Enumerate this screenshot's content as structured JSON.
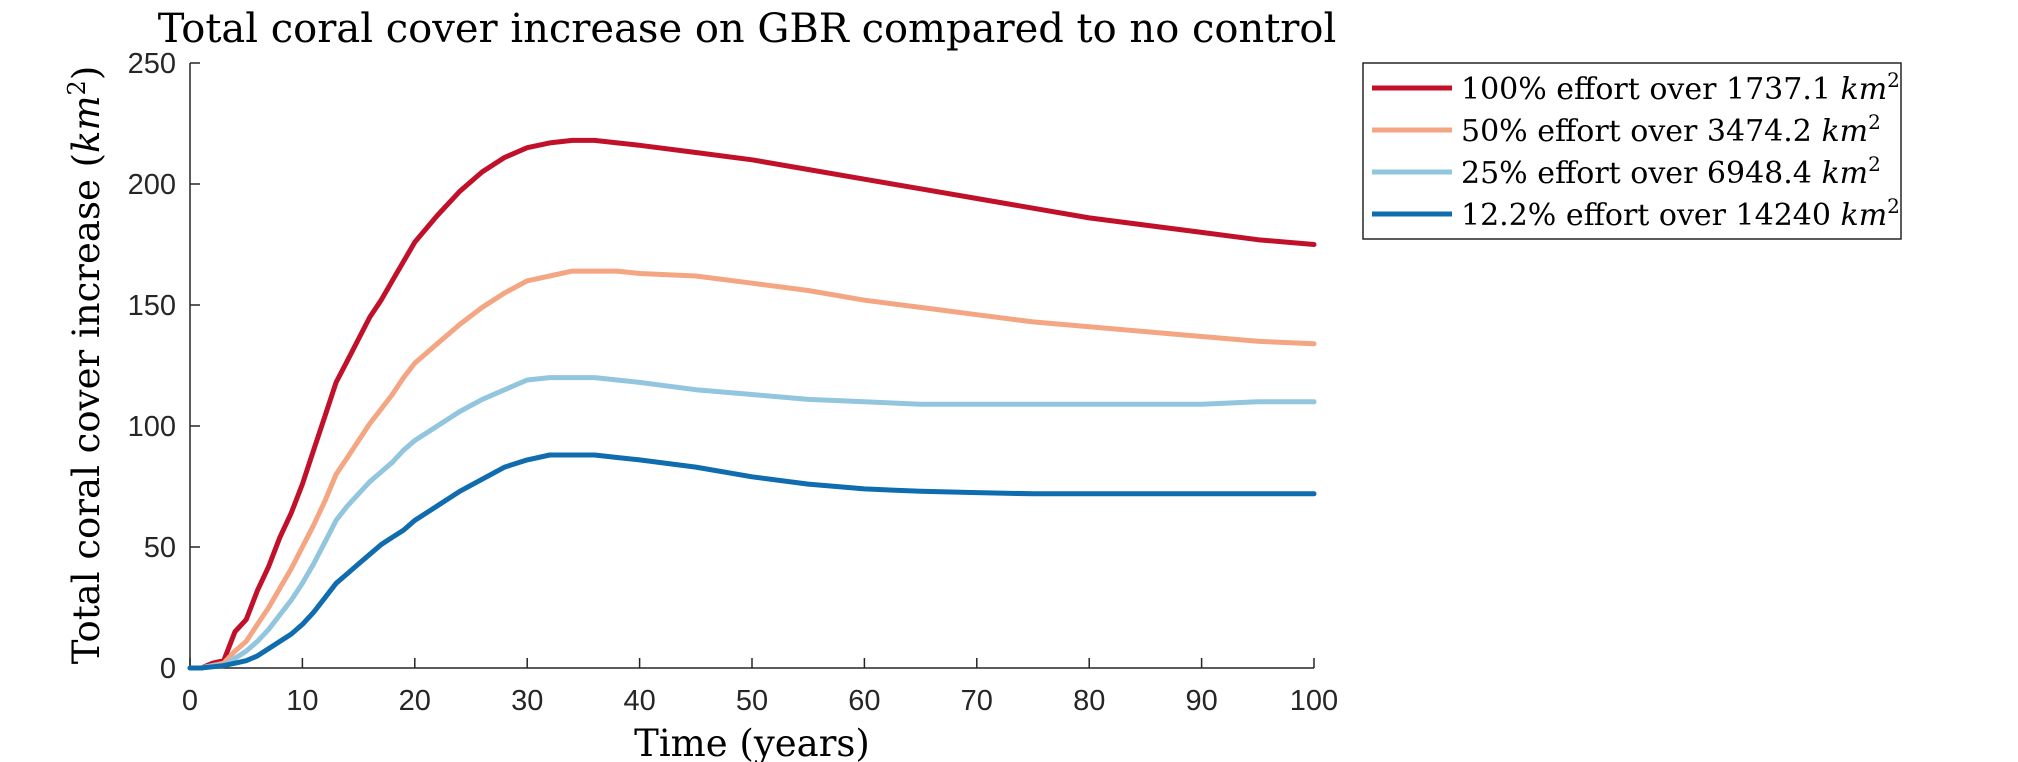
{
  "chart_data": {
    "type": "line",
    "title": "Total coral cover increase on GBR compared to no control",
    "xlabel": "Time (years)",
    "ylabel_main": "Total coral cover increase (",
    "ylabel_unit_base": "km",
    "ylabel_unit_exp": "2",
    "ylabel_close": ")",
    "xlim": [
      0,
      100
    ],
    "ylim": [
      0,
      250
    ],
    "xticks": [
      0,
      10,
      20,
      30,
      40,
      50,
      60,
      70,
      80,
      90,
      100
    ],
    "yticks": [
      0,
      50,
      100,
      150,
      200,
      250
    ],
    "x": [
      0,
      1,
      2,
      3,
      4,
      5,
      6,
      7,
      8,
      9,
      10,
      11,
      12,
      13,
      14,
      15,
      16,
      17,
      18,
      19,
      20,
      22,
      24,
      26,
      28,
      30,
      32,
      34,
      36,
      38,
      40,
      45,
      50,
      55,
      60,
      65,
      70,
      75,
      80,
      85,
      90,
      95,
      100
    ],
    "grid": false,
    "legend_position": "outside-top-right",
    "series": [
      {
        "name_prefix": "100% effort over 1737.1 ",
        "name_unit": "km",
        "name_exp": "2",
        "color": "#c1112a",
        "values": [
          0,
          0,
          2,
          3,
          15,
          20,
          32,
          42,
          54,
          64,
          76,
          90,
          104,
          118,
          127,
          136,
          145,
          152,
          160,
          168,
          176,
          187,
          197,
          205,
          211,
          215,
          217,
          218,
          218,
          217,
          216,
          213,
          210,
          206,
          202,
          198,
          194,
          190,
          186,
          183,
          180,
          177,
          175
        ]
      },
      {
        "name_prefix": "50% effort over 3474.2 ",
        "name_unit": "km",
        "name_exp": "2",
        "color": "#f4a582",
        "values": [
          0,
          0,
          1,
          2,
          7,
          11,
          18,
          25,
          33,
          41,
          50,
          59,
          69,
          80,
          87,
          94,
          101,
          107,
          113,
          120,
          126,
          134,
          142,
          149,
          155,
          160,
          162,
          164,
          164,
          164,
          163,
          162,
          159,
          156,
          152,
          149,
          146,
          143,
          141,
          139,
          137,
          135,
          134
        ]
      },
      {
        "name_prefix": "25% effort over 6948.4 ",
        "name_unit": "km",
        "name_exp": "2",
        "color": "#92c5de",
        "values": [
          0,
          0,
          1,
          1,
          4,
          7,
          11,
          16,
          22,
          28,
          35,
          43,
          52,
          61,
          67,
          72,
          77,
          81,
          85,
          90,
          94,
          100,
          106,
          111,
          115,
          119,
          120,
          120,
          120,
          119,
          118,
          115,
          113,
          111,
          110,
          109,
          109,
          109,
          109,
          109,
          109,
          110,
          110
        ]
      },
      {
        "name_prefix": "12.2% effort over 14240 ",
        "name_unit": "km",
        "name_exp": "2",
        "color": "#0f6cae",
        "values": [
          0,
          0,
          0.5,
          1,
          2,
          3,
          5,
          8,
          11,
          14,
          18,
          23,
          29,
          35,
          39,
          43,
          47,
          51,
          54,
          57,
          61,
          67,
          73,
          78,
          83,
          86,
          88,
          88,
          88,
          87,
          86,
          83,
          79,
          76,
          74,
          73,
          72.5,
          72,
          72,
          72,
          72,
          72,
          72
        ]
      }
    ]
  }
}
